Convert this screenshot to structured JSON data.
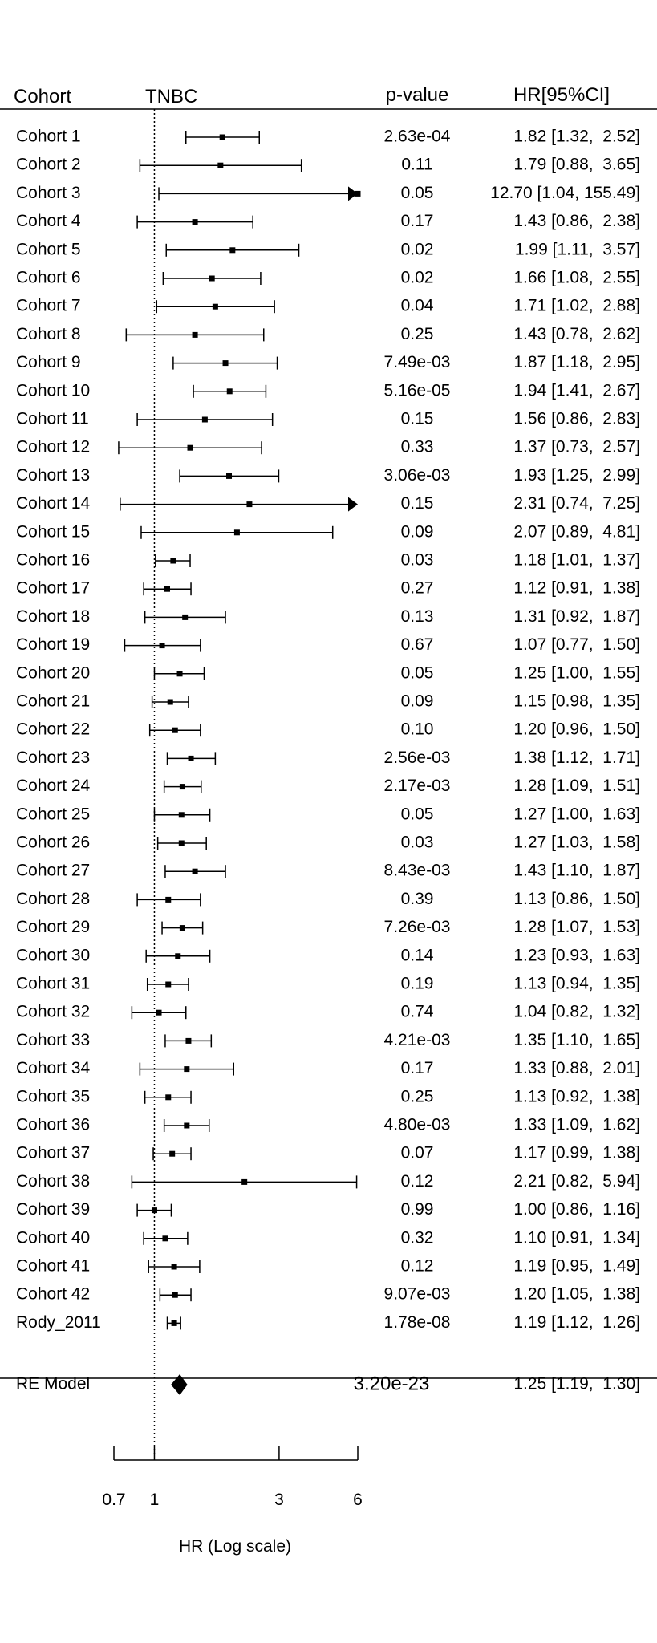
{
  "chart_data": {
    "type": "forest",
    "title": "",
    "header": {
      "label": "Cohort",
      "group": "TNBC",
      "pvalue": "p-value",
      "hr": "HR[95%CI]"
    },
    "xlabel": "HR (Log scale)",
    "x_scale": "log",
    "xlim": [
      0.7,
      6
    ],
    "xticks": [
      0.7,
      1,
      3,
      6
    ],
    "xtick_labels": [
      "0.7",
      "1",
      "3",
      "6"
    ],
    "reference_line": 1,
    "plot_xlim": [
      0.7,
      6
    ],
    "rows": [
      {
        "label": "Cohort 1",
        "hr": 1.82,
        "lo": 1.32,
        "hi": 2.52,
        "p": "2.63e-04",
        "ci_text": "1.82 [1.32,  2.52]"
      },
      {
        "label": "Cohort 2",
        "hr": 1.79,
        "lo": 0.88,
        "hi": 3.65,
        "p": "0.11",
        "ci_text": "1.79 [0.88,  3.65]"
      },
      {
        "label": "Cohort 3",
        "hr": 12.7,
        "lo": 1.04,
        "hi": 155.49,
        "p": "0.05",
        "ci_text": "12.70 [1.04, 155.49]"
      },
      {
        "label": "Cohort 4",
        "hr": 1.43,
        "lo": 0.86,
        "hi": 2.38,
        "p": "0.17",
        "ci_text": "1.43 [0.86,  2.38]"
      },
      {
        "label": "Cohort 5",
        "hr": 1.99,
        "lo": 1.11,
        "hi": 3.57,
        "p": "0.02",
        "ci_text": "1.99 [1.11,  3.57]"
      },
      {
        "label": "Cohort 6",
        "hr": 1.66,
        "lo": 1.08,
        "hi": 2.55,
        "p": "0.02",
        "ci_text": "1.66 [1.08,  2.55]"
      },
      {
        "label": "Cohort 7",
        "hr": 1.71,
        "lo": 1.02,
        "hi": 2.88,
        "p": "0.04",
        "ci_text": "1.71 [1.02,  2.88]"
      },
      {
        "label": "Cohort 8",
        "hr": 1.43,
        "lo": 0.78,
        "hi": 2.62,
        "p": "0.25",
        "ci_text": "1.43 [0.78,  2.62]"
      },
      {
        "label": "Cohort 9",
        "hr": 1.87,
        "lo": 1.18,
        "hi": 2.95,
        "p": "7.49e-03",
        "ci_text": "1.87 [1.18,  2.95]"
      },
      {
        "label": "Cohort 10",
        "hr": 1.94,
        "lo": 1.41,
        "hi": 2.67,
        "p": "5.16e-05",
        "ci_text": "1.94 [1.41,  2.67]"
      },
      {
        "label": "Cohort 11",
        "hr": 1.56,
        "lo": 0.86,
        "hi": 2.83,
        "p": "0.15",
        "ci_text": "1.56 [0.86,  2.83]"
      },
      {
        "label": "Cohort 12",
        "hr": 1.37,
        "lo": 0.73,
        "hi": 2.57,
        "p": "0.33",
        "ci_text": "1.37 [0.73,  2.57]"
      },
      {
        "label": "Cohort 13",
        "hr": 1.93,
        "lo": 1.25,
        "hi": 2.99,
        "p": "3.06e-03",
        "ci_text": "1.93 [1.25,  2.99]"
      },
      {
        "label": "Cohort 14",
        "hr": 2.31,
        "lo": 0.74,
        "hi": 7.25,
        "p": "0.15",
        "ci_text": "2.31 [0.74,  7.25]"
      },
      {
        "label": "Cohort 15",
        "hr": 2.07,
        "lo": 0.89,
        "hi": 4.81,
        "p": "0.09",
        "ci_text": "2.07 [0.89,  4.81]"
      },
      {
        "label": "Cohort 16",
        "hr": 1.18,
        "lo": 1.01,
        "hi": 1.37,
        "p": "0.03",
        "ci_text": "1.18 [1.01,  1.37]"
      },
      {
        "label": "Cohort 17",
        "hr": 1.12,
        "lo": 0.91,
        "hi": 1.38,
        "p": "0.27",
        "ci_text": "1.12 [0.91,  1.38]"
      },
      {
        "label": "Cohort 18",
        "hr": 1.31,
        "lo": 0.92,
        "hi": 1.87,
        "p": "0.13",
        "ci_text": "1.31 [0.92,  1.87]"
      },
      {
        "label": "Cohort 19",
        "hr": 1.07,
        "lo": 0.77,
        "hi": 1.5,
        "p": "0.67",
        "ci_text": "1.07 [0.77,  1.50]"
      },
      {
        "label": "Cohort 20",
        "hr": 1.25,
        "lo": 1.0,
        "hi": 1.55,
        "p": "0.05",
        "ci_text": "1.25 [1.00,  1.55]"
      },
      {
        "label": "Cohort 21",
        "hr": 1.15,
        "lo": 0.98,
        "hi": 1.35,
        "p": "0.09",
        "ci_text": "1.15 [0.98,  1.35]"
      },
      {
        "label": "Cohort 22",
        "hr": 1.2,
        "lo": 0.96,
        "hi": 1.5,
        "p": "0.10",
        "ci_text": "1.20 [0.96,  1.50]"
      },
      {
        "label": "Cohort 23",
        "hr": 1.38,
        "lo": 1.12,
        "hi": 1.71,
        "p": "2.56e-03",
        "ci_text": "1.38 [1.12,  1.71]"
      },
      {
        "label": "Cohort 24",
        "hr": 1.28,
        "lo": 1.09,
        "hi": 1.51,
        "p": "2.17e-03",
        "ci_text": "1.28 [1.09,  1.51]"
      },
      {
        "label": "Cohort 25",
        "hr": 1.27,
        "lo": 1.0,
        "hi": 1.63,
        "p": "0.05",
        "ci_text": "1.27 [1.00,  1.63]"
      },
      {
        "label": "Cohort 26",
        "hr": 1.27,
        "lo": 1.03,
        "hi": 1.58,
        "p": "0.03",
        "ci_text": "1.27 [1.03,  1.58]"
      },
      {
        "label": "Cohort 27",
        "hr": 1.43,
        "lo": 1.1,
        "hi": 1.87,
        "p": "8.43e-03",
        "ci_text": "1.43 [1.10,  1.87]"
      },
      {
        "label": "Cohort 28",
        "hr": 1.13,
        "lo": 0.86,
        "hi": 1.5,
        "p": "0.39",
        "ci_text": "1.13 [0.86,  1.50]"
      },
      {
        "label": "Cohort 29",
        "hr": 1.28,
        "lo": 1.07,
        "hi": 1.53,
        "p": "7.26e-03",
        "ci_text": "1.28 [1.07,  1.53]"
      },
      {
        "label": "Cohort 30",
        "hr": 1.23,
        "lo": 0.93,
        "hi": 1.63,
        "p": "0.14",
        "ci_text": "1.23 [0.93,  1.63]"
      },
      {
        "label": "Cohort 31",
        "hr": 1.13,
        "lo": 0.94,
        "hi": 1.35,
        "p": "0.19",
        "ci_text": "1.13 [0.94,  1.35]"
      },
      {
        "label": "Cohort 32",
        "hr": 1.04,
        "lo": 0.82,
        "hi": 1.32,
        "p": "0.74",
        "ci_text": "1.04 [0.82,  1.32]"
      },
      {
        "label": "Cohort 33",
        "hr": 1.35,
        "lo": 1.1,
        "hi": 1.65,
        "p": "4.21e-03",
        "ci_text": "1.35 [1.10,  1.65]"
      },
      {
        "label": "Cohort 34",
        "hr": 1.33,
        "lo": 0.88,
        "hi": 2.01,
        "p": "0.17",
        "ci_text": "1.33 [0.88,  2.01]"
      },
      {
        "label": "Cohort 35",
        "hr": 1.13,
        "lo": 0.92,
        "hi": 1.38,
        "p": "0.25",
        "ci_text": "1.13 [0.92,  1.38]"
      },
      {
        "label": "Cohort 36",
        "hr": 1.33,
        "lo": 1.09,
        "hi": 1.62,
        "p": "4.80e-03",
        "ci_text": "1.33 [1.09,  1.62]"
      },
      {
        "label": "Cohort 37",
        "hr": 1.17,
        "lo": 0.99,
        "hi": 1.38,
        "p": "0.07",
        "ci_text": "1.17 [0.99,  1.38]"
      },
      {
        "label": "Cohort 38",
        "hr": 2.21,
        "lo": 0.82,
        "hi": 5.94,
        "p": "0.12",
        "ci_text": "2.21 [0.82,  5.94]"
      },
      {
        "label": "Cohort 39",
        "hr": 1.0,
        "lo": 0.86,
        "hi": 1.16,
        "p": "0.99",
        "ci_text": "1.00 [0.86,  1.16]"
      },
      {
        "label": "Cohort 40",
        "hr": 1.1,
        "lo": 0.91,
        "hi": 1.34,
        "p": "0.32",
        "ci_text": "1.10 [0.91,  1.34]"
      },
      {
        "label": "Cohort 41",
        "hr": 1.19,
        "lo": 0.95,
        "hi": 1.49,
        "p": "0.12",
        "ci_text": "1.19 [0.95,  1.49]"
      },
      {
        "label": "Cohort 42",
        "hr": 1.2,
        "lo": 1.05,
        "hi": 1.38,
        "p": "9.07e-03",
        "ci_text": "1.20 [1.05,  1.38]"
      },
      {
        "label": "Rody_2011",
        "hr": 1.19,
        "lo": 1.12,
        "hi": 1.26,
        "p": "1.78e-08",
        "ci_text": "1.19 [1.12,  1.26]"
      }
    ],
    "summary": {
      "label": "RE Model",
      "hr": 1.25,
      "lo": 1.19,
      "hi": 1.3,
      "p": "3.20e-23",
      "ci_text": "1.25 [1.19,  1.30]"
    }
  }
}
